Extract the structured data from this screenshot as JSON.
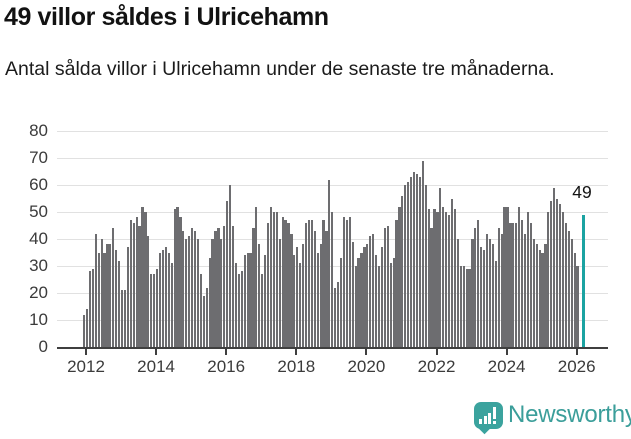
{
  "header": {
    "title": "49 villor såldes i Ulricehamn",
    "subtitle": "Antal sålda villor i Ulricehamn under de senaste tre månaderna."
  },
  "chart_data": {
    "type": "bar",
    "title": "49 villor såldes i Ulricehamn",
    "subtitle": "Antal sålda villor i Ulricehamn under de senaste tre månaderna.",
    "xlabel": "",
    "ylabel": "",
    "ylim": [
      0,
      80
    ],
    "yticks": [
      0,
      10,
      20,
      30,
      40,
      50,
      60,
      70,
      80
    ],
    "xticks": [
      "2012",
      "2014",
      "2016",
      "2018",
      "2020",
      "2022",
      "2024",
      "2026"
    ],
    "grid": true,
    "x_period": "monthly",
    "bar_color": "#6d6d70",
    "values": [
      12,
      14,
      28,
      29,
      42,
      35,
      40,
      35,
      38,
      38,
      44,
      36,
      32,
      21,
      21,
      37,
      47,
      46,
      48,
      45,
      52,
      50,
      41,
      27,
      27,
      29,
      35,
      36,
      37,
      35,
      31,
      51,
      52,
      48,
      43,
      40,
      41,
      44,
      43,
      40,
      27,
      19,
      22,
      33,
      40,
      43,
      44,
      40,
      45,
      54,
      60,
      45,
      31,
      27,
      28,
      34,
      35,
      35,
      44,
      52,
      38,
      27,
      34,
      46,
      52,
      50,
      50,
      40,
      48,
      47,
      46,
      42,
      34,
      37,
      31,
      38,
      46,
      47,
      47,
      43,
      35,
      38,
      47,
      43,
      62,
      50,
      22,
      24,
      33,
      48,
      47,
      48,
      39,
      30,
      33,
      35,
      37,
      38,
      41,
      42,
      34,
      30,
      37,
      44,
      45,
      31,
      33,
      47,
      52,
      56,
      60,
      61,
      63,
      65,
      64,
      63,
      69,
      60,
      51,
      44,
      51,
      50,
      59,
      52,
      50,
      49,
      55,
      51,
      40,
      30,
      30,
      29,
      29,
      40,
      44,
      47,
      37,
      36,
      42,
      40,
      38,
      32,
      44,
      42,
      52,
      52,
      46,
      46,
      46,
      52,
      47,
      42,
      50,
      46,
      40,
      38,
      36,
      35,
      38,
      50,
      54,
      59,
      55,
      53,
      50,
      46,
      43,
      40,
      35,
      30
    ],
    "highlight": {
      "value": 49,
      "label": "49",
      "color": "#1ba3a2",
      "gap_slots": 1
    }
  },
  "footer": {
    "brand": "Newsworthy",
    "logo_color": "#3ba39e"
  }
}
